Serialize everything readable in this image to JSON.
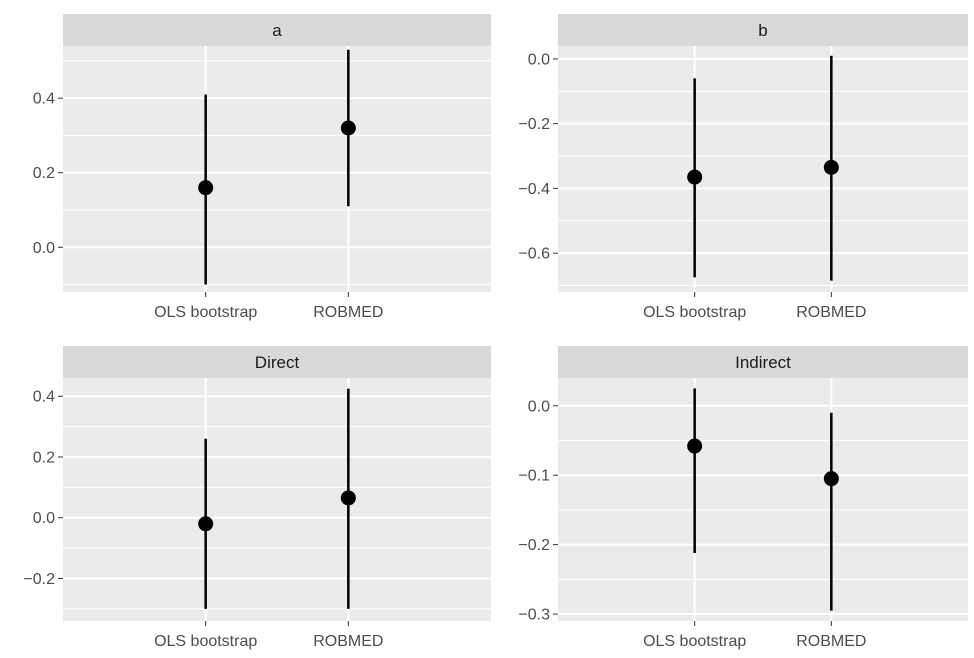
{
  "chart_data": {
    "type": "pointrange",
    "layout": "facet_wrap 2x2",
    "categories": [
      "OLS bootstrap",
      "ROBMED"
    ],
    "colors": {
      "panel_background": "#ebebeb",
      "strip_background": "#d9d9d9",
      "grid": "#ffffff",
      "point": "#000000",
      "tick_label": "#4d4d4d",
      "strip_text": "#1a1a1a"
    },
    "grid": true,
    "facets": [
      {
        "title": "a",
        "ylim": [
          -0.12,
          0.54
        ],
        "y_ticks": [
          0.0,
          0.2,
          0.4
        ],
        "y_tick_labels": [
          "0.0",
          "0.2",
          "0.4"
        ],
        "points": [
          {
            "category": "OLS bootstrap",
            "estimate": 0.16,
            "lower": -0.1,
            "upper": 0.41
          },
          {
            "category": "ROBMED",
            "estimate": 0.32,
            "lower": 0.11,
            "upper": 0.53
          }
        ]
      },
      {
        "title": "b",
        "ylim": [
          -0.72,
          0.04
        ],
        "y_ticks": [
          -0.6,
          -0.4,
          -0.2,
          0.0
        ],
        "y_tick_labels": [
          "−0.6",
          "−0.4",
          "−0.2",
          "0.0"
        ],
        "points": [
          {
            "category": "OLS bootstrap",
            "estimate": -0.365,
            "lower": -0.675,
            "upper": -0.06
          },
          {
            "category": "ROBMED",
            "estimate": -0.335,
            "lower": -0.685,
            "upper": 0.01
          }
        ]
      },
      {
        "title": "Direct",
        "ylim": [
          -0.34,
          0.46
        ],
        "y_ticks": [
          -0.2,
          0.0,
          0.2,
          0.4
        ],
        "y_tick_labels": [
          "−0.2",
          "0.0",
          "0.2",
          "0.4"
        ],
        "points": [
          {
            "category": "OLS bootstrap",
            "estimate": -0.02,
            "lower": -0.3,
            "upper": 0.26
          },
          {
            "category": "ROBMED",
            "estimate": 0.065,
            "lower": -0.3,
            "upper": 0.425
          }
        ]
      },
      {
        "title": "Indirect",
        "ylim": [
          -0.31,
          0.04
        ],
        "y_ticks": [
          -0.3,
          -0.2,
          -0.1,
          0.0
        ],
        "y_tick_labels": [
          "−0.3",
          "−0.2",
          "−0.1",
          "0.0"
        ],
        "points": [
          {
            "category": "OLS bootstrap",
            "estimate": -0.058,
            "lower": -0.212,
            "upper": 0.025
          },
          {
            "category": "ROBMED",
            "estimate": -0.105,
            "lower": -0.295,
            "upper": -0.01
          }
        ]
      }
    ]
  }
}
